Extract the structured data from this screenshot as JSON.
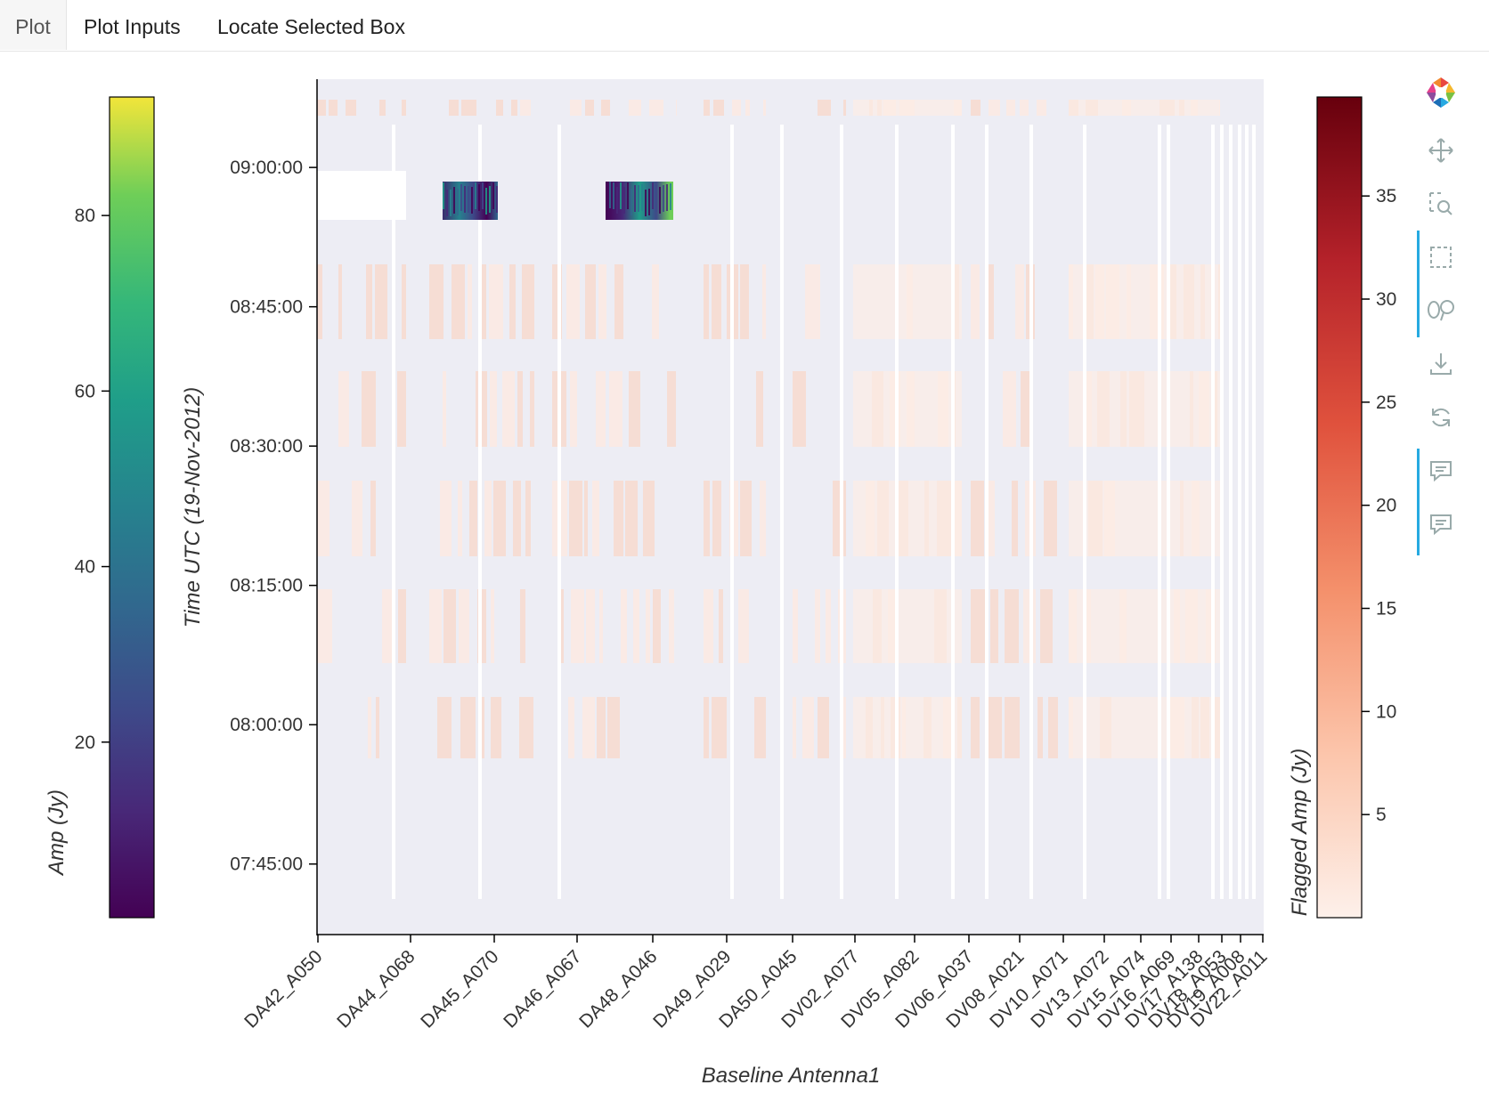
{
  "tabs": [
    {
      "label": "Plot",
      "active": true
    },
    {
      "label": "Plot Inputs",
      "active": false
    },
    {
      "label": "Locate Selected Box",
      "active": false
    }
  ],
  "chart_data": {
    "type": "heatmap",
    "xlabel": "Baseline Antenna1",
    "ylabel": "Time UTC (19-Nov-2012)",
    "x_tick_labels": [
      "DA42_A050",
      "DA44_A068",
      "DA45_A070",
      "DA46_A067",
      "DA48_A046",
      "DA49_A029",
      "DA50_A045",
      "DV02_A077",
      "DV05_A082",
      "DV06_A037",
      "DV08_A021",
      "DV10_A071",
      "DV13_A072",
      "DV15_A074",
      "DV16_A069",
      "DV17_A138",
      "DV18_A053",
      "DV19_A008",
      "DV22_A011"
    ],
    "y_tick_labels": [
      "09:00:00",
      "08:45:00",
      "08:30:00",
      "08:15:00",
      "08:00:00",
      "07:45:00"
    ],
    "ylim": [
      "07:37:30",
      "09:09:30"
    ],
    "colorbars": [
      {
        "label": "Amp (Jy)",
        "colormap": "viridis",
        "ticks": [
          20,
          40,
          60,
          80
        ],
        "range": [
          0,
          93.5
        ]
      },
      {
        "label": "Flagged Amp (Jy)",
        "colormap": "reds",
        "ticks": [
          5,
          10,
          15,
          20,
          25,
          30,
          35
        ],
        "range": [
          0,
          39.8
        ]
      }
    ],
    "unflagged_regions": [
      {
        "x_from": "DA44_A068",
        "x_to": "DA45_A070",
        "time_from": "08:55:15",
        "time_to": "08:59:30"
      },
      {
        "x_from": "DA46_A067",
        "x_to": "DA48_A046",
        "time_from": "08:55:15",
        "time_to": "08:59:30"
      }
    ]
  },
  "toolbar": {
    "logo": "bokeh-logo-icon",
    "tools": [
      "pan-icon",
      "box-zoom-icon",
      "box-select-icon",
      "lasso-select-icon",
      "save-icon",
      "reset-icon",
      "hover-icon",
      "hover-icon"
    ]
  }
}
